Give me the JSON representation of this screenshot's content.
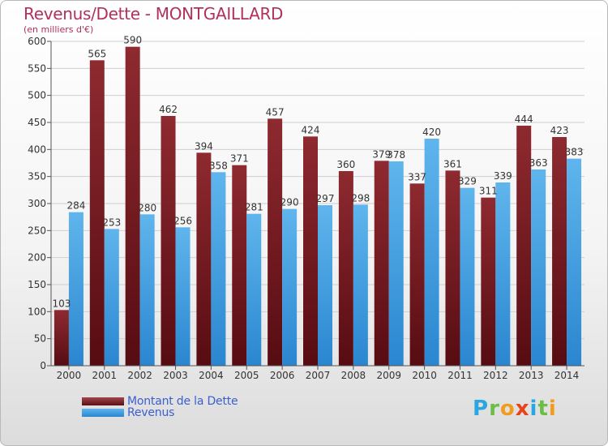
{
  "title": "Revenus/Dette - MONTGAILLARD",
  "subtitle": "(en milliers d'€)",
  "logo": {
    "letters": [
      "P",
      "r",
      "o",
      "x",
      "i",
      "t",
      "i"
    ],
    "colors": [
      "#2aa6e0",
      "#6cbd45",
      "#f29b1d",
      "#e8431a",
      "#2aa6e0",
      "#6cbd45",
      "#f29b1d"
    ]
  },
  "colors": {
    "dette": "#7a1c24",
    "revenus": "#3d9be0",
    "title": "#b03060"
  },
  "chart_data": {
    "type": "bar",
    "categories": [
      "2000",
      "2001",
      "2002",
      "2003",
      "2004",
      "2005",
      "2006",
      "2007",
      "2008",
      "2009",
      "2010",
      "2011",
      "2012",
      "2013",
      "2014"
    ],
    "series": [
      {
        "name": "Montant de la Dette",
        "values": [
          103,
          565,
          590,
          462,
          394,
          371,
          457,
          424,
          360,
          379,
          337,
          361,
          311,
          444,
          423
        ]
      },
      {
        "name": "Revenus",
        "values": [
          284,
          253,
          280,
          256,
          358,
          281,
          290,
          297,
          298,
          378,
          420,
          329,
          339,
          363,
          383
        ]
      }
    ],
    "yticks": [
      "0",
      "50",
      "100",
      "150",
      "200",
      "250",
      "300",
      "350",
      "400",
      "450",
      "500",
      "550",
      "600"
    ],
    "ylim": [
      0,
      600
    ],
    "grid": true,
    "legend_position": "bottom-left"
  }
}
